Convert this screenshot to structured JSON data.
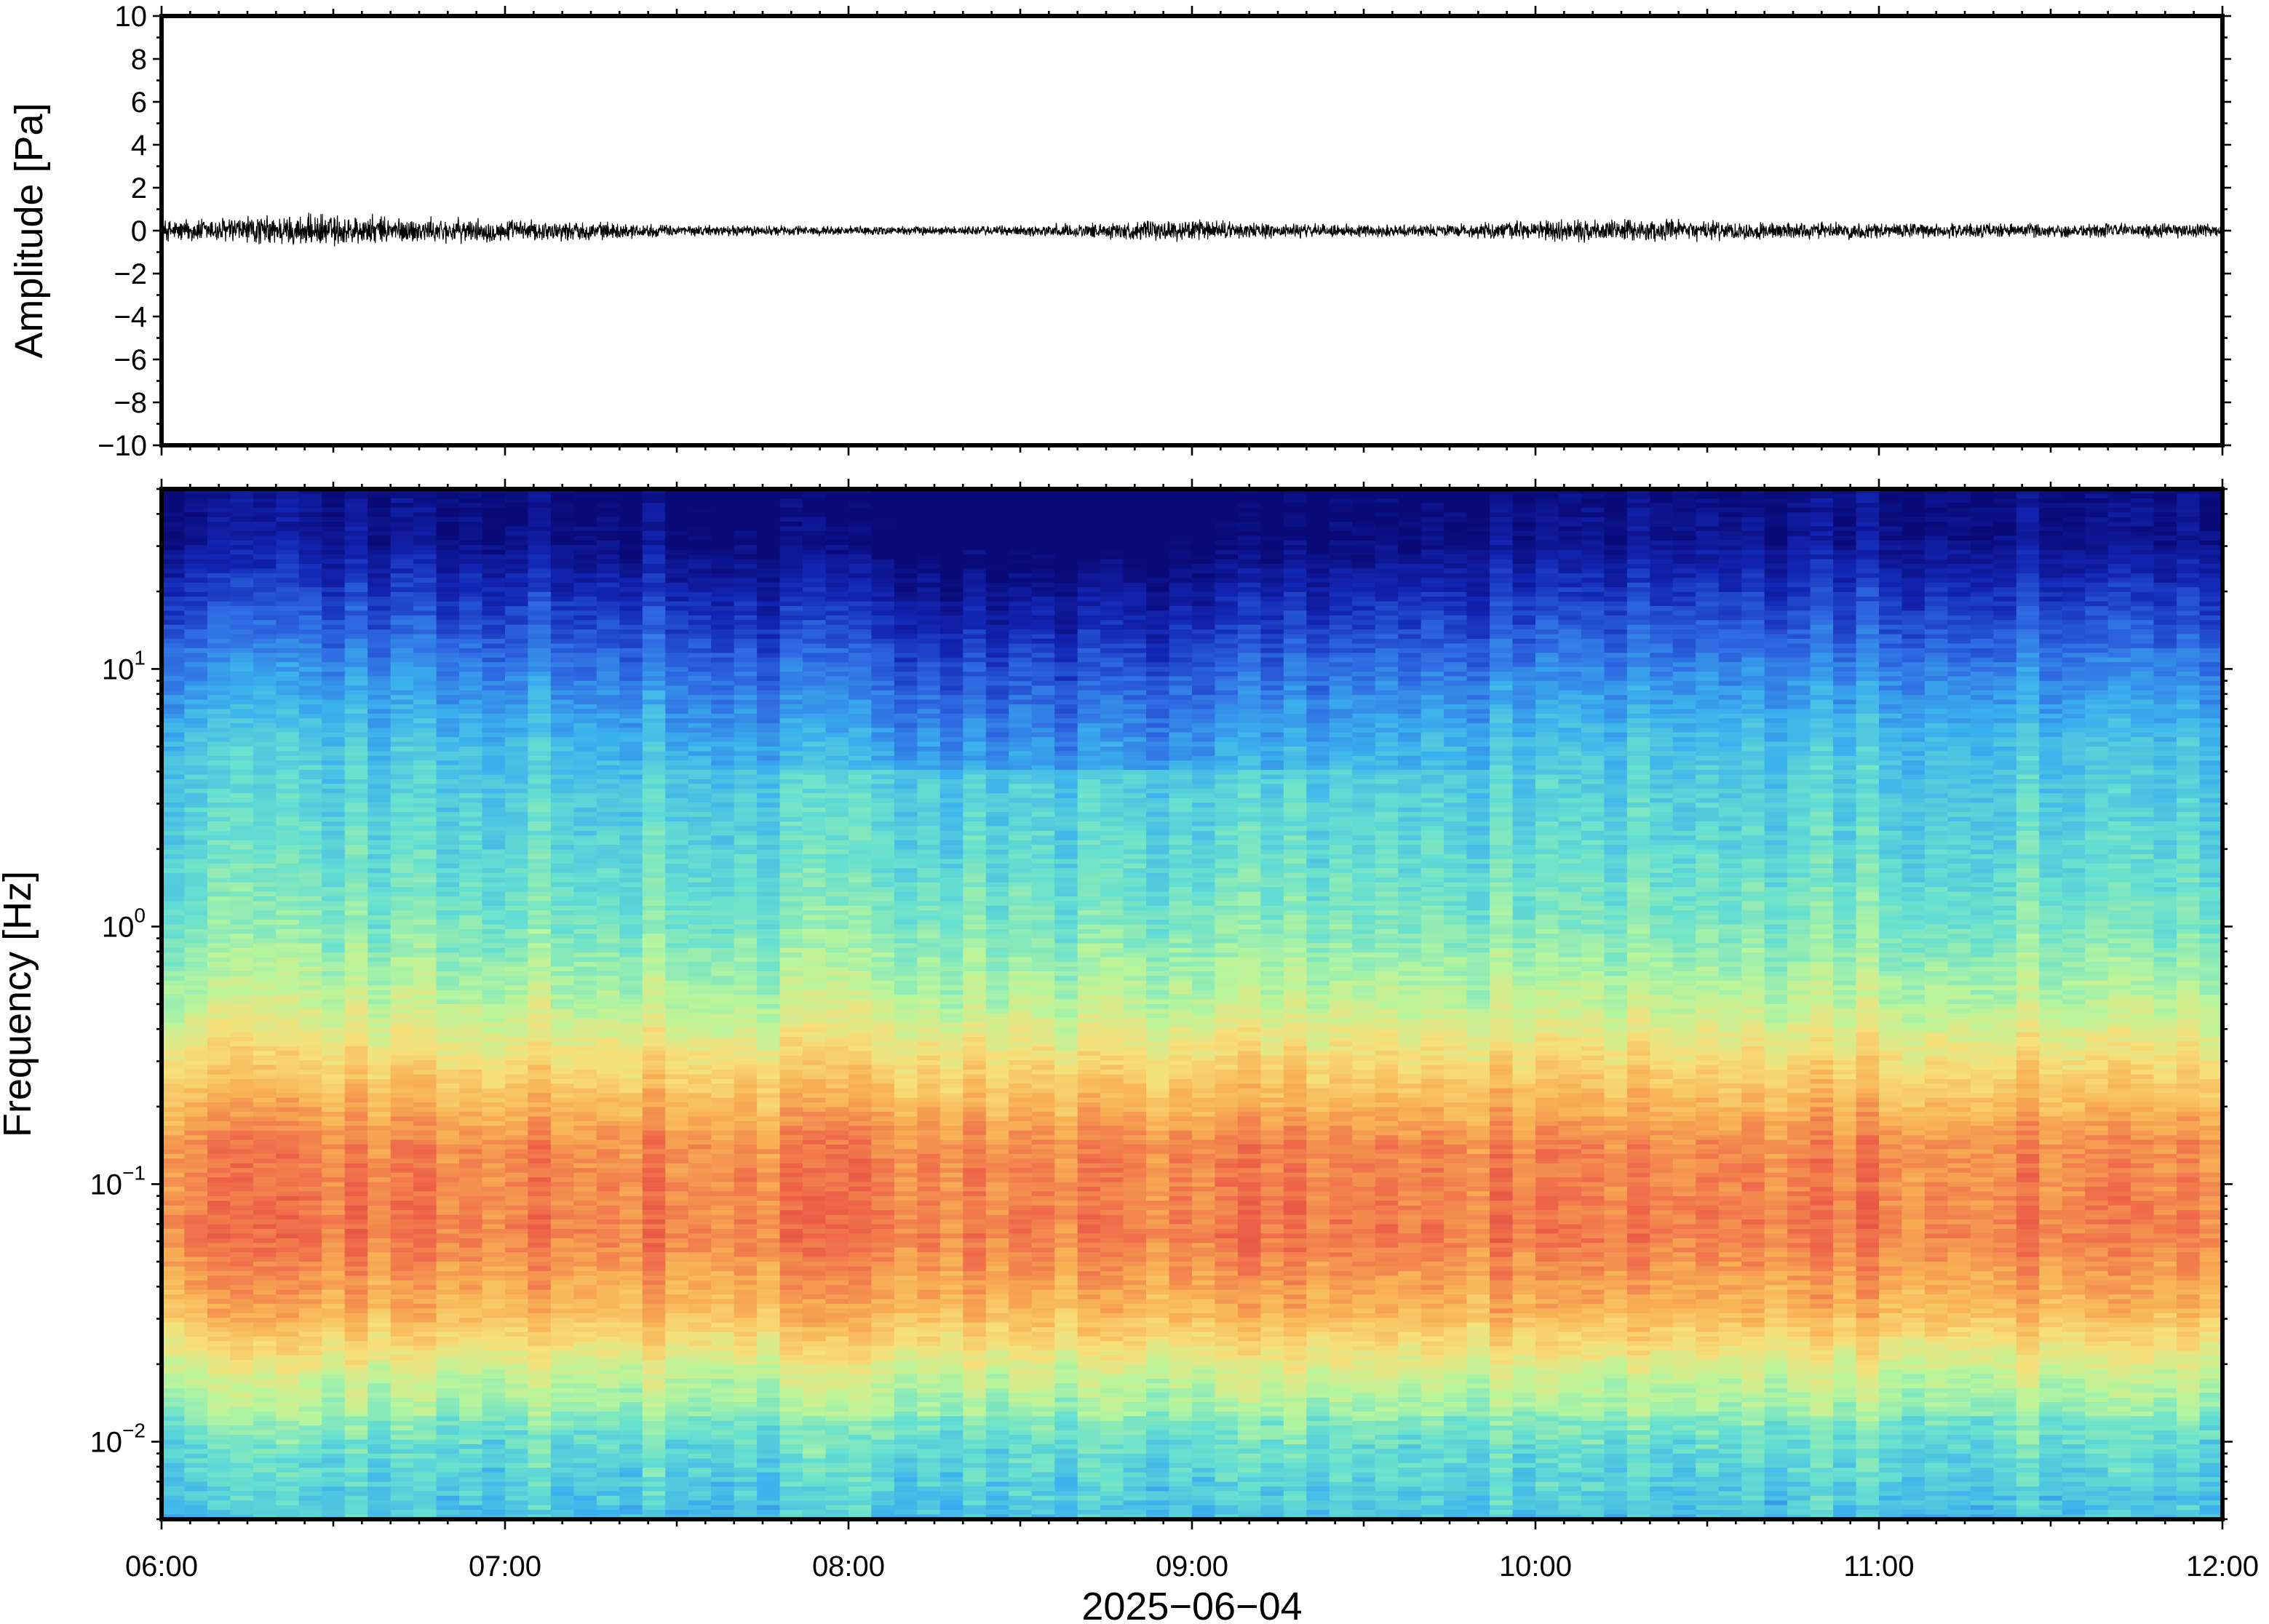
{
  "chart_data": [
    {
      "type": "line",
      "panel": "waveform",
      "ylabel": "Amplitude [Pa]",
      "ylim": [
        -10,
        10
      ],
      "yticks": [
        10,
        8,
        6,
        4,
        2,
        0,
        -2,
        -4,
        -6,
        -8,
        -10
      ],
      "ytick_labels": [
        "10",
        "8",
        "6",
        "4",
        "2",
        "0",
        "−2",
        "−4",
        "−6",
        "−8",
        "−10"
      ],
      "xlim": [
        "06:00",
        "12:00"
      ],
      "trace_color": "#000000",
      "series": [
        {
          "x_hours": [
            6.0,
            6.25,
            6.5,
            6.75,
            7.0,
            7.25,
            7.5,
            7.75,
            8.0,
            8.25,
            8.5,
            8.75,
            9.0,
            9.25,
            9.5,
            9.75,
            10.0,
            10.25,
            10.5,
            10.75,
            11.0,
            11.25,
            11.5,
            11.75,
            12.0
          ],
          "envelope_pa": [
            0.6,
            0.8,
            0.9,
            0.7,
            0.6,
            0.5,
            0.3,
            0.3,
            0.25,
            0.25,
            0.3,
            0.45,
            0.6,
            0.4,
            0.35,
            0.35,
            0.55,
            0.6,
            0.55,
            0.45,
            0.45,
            0.4,
            0.4,
            0.4,
            0.4
          ]
        }
      ]
    },
    {
      "type": "heatmap",
      "panel": "spectrogram",
      "ylabel": "Frequency [Hz]",
      "xlabel": "2025−06−04",
      "yscale": "log",
      "ylim": [
        0.005,
        50
      ],
      "yticks": [
        {
          "value": 10,
          "base": "10",
          "exp": "1"
        },
        {
          "value": 1,
          "base": "10",
          "exp": "0"
        },
        {
          "value": 0.1,
          "base": "10",
          "exp": "−1"
        },
        {
          "value": 0.01,
          "base": "10",
          "exp": "−2"
        }
      ],
      "xlim": [
        "06:00",
        "12:00"
      ],
      "xticks": [
        "06:00",
        "07:00",
        "08:00",
        "09:00",
        "10:00",
        "11:00",
        "12:00"
      ],
      "colormap": [
        "#0a0a78",
        "#1226b4",
        "#2f6ae2",
        "#3bb0ee",
        "#66e0d0",
        "#b8f59c",
        "#f7e07a",
        "#f8b054",
        "#ef6a4a",
        "#d8323c"
      ],
      "profile_by_log10_freq": [
        {
          "log10_f": 1.7,
          "level": 0.02
        },
        {
          "log10_f": 1.5,
          "level": 0.05
        },
        {
          "log10_f": 1.3,
          "level": 0.14
        },
        {
          "log10_f": 1.0,
          "level": 0.27
        },
        {
          "log10_f": 0.7,
          "level": 0.38
        },
        {
          "log10_f": 0.3,
          "level": 0.43
        },
        {
          "log10_f": 0.0,
          "level": 0.48
        },
        {
          "log10_f": -0.3,
          "level": 0.57
        },
        {
          "log10_f": -0.6,
          "level": 0.72
        },
        {
          "log10_f": -0.85,
          "level": 0.84
        },
        {
          "log10_f": -1.2,
          "level": 0.86
        },
        {
          "log10_f": -1.5,
          "level": 0.76
        },
        {
          "log10_f": -1.75,
          "level": 0.58
        },
        {
          "log10_f": -2.0,
          "level": 0.47
        },
        {
          "log10_f": -2.3,
          "level": 0.4
        }
      ]
    }
  ]
}
